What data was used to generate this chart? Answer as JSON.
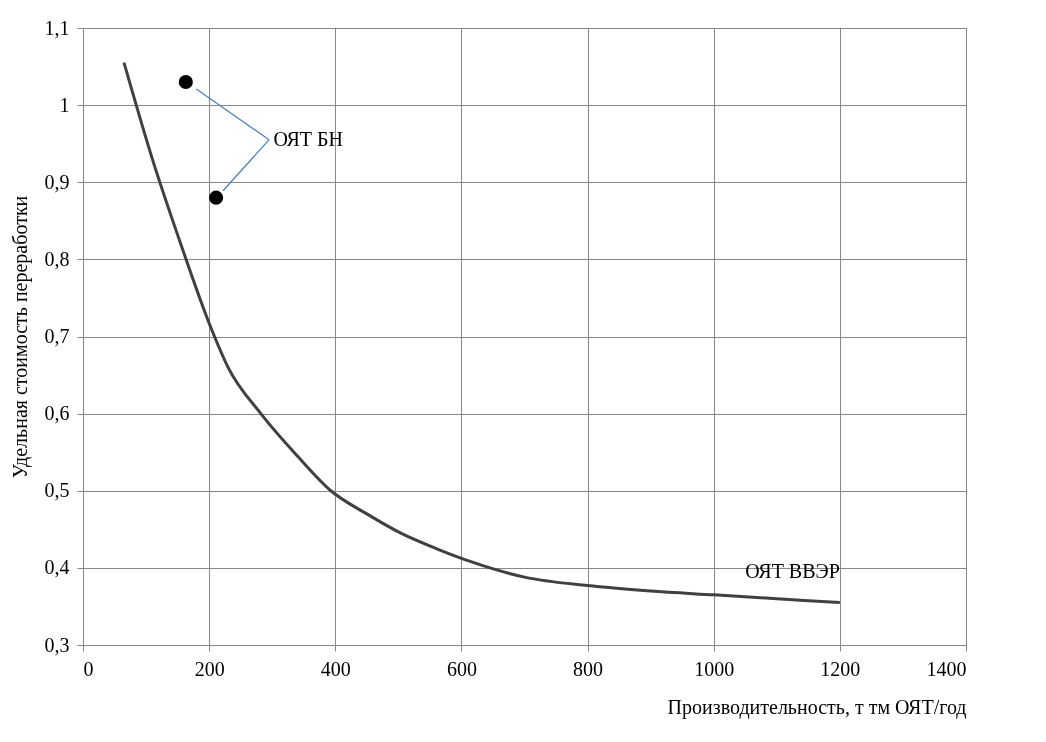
{
  "chart_data": {
    "type": "line",
    "xlabel": "Производительность, т тм ОЯТ/год",
    "ylabel": "Удельная стоимость переработки",
    "xlim": [
      0,
      1400
    ],
    "ylim": [
      0.3,
      1.1
    ],
    "xticks": [
      0,
      200,
      400,
      600,
      800,
      1000,
      1200,
      1400
    ],
    "yticks": [
      {
        "value": 0.3,
        "label": "0,3"
      },
      {
        "value": 0.4,
        "label": "0,4"
      },
      {
        "value": 0.5,
        "label": "0,5"
      },
      {
        "value": 0.6,
        "label": "0,6"
      },
      {
        "value": 0.7,
        "label": "0,7"
      },
      {
        "value": 0.8,
        "label": "0,8"
      },
      {
        "value": 0.9,
        "label": "0,9"
      },
      {
        "value": 1,
        "label": "1"
      },
      {
        "value": 1.1,
        "label": "1,1"
      }
    ],
    "grid": true,
    "series": [
      {
        "name": "ОЯТ ВВЭР",
        "color": "#404040",
        "marker": "none",
        "x": [
          65,
          110,
          155,
          203,
          230,
          282,
          340,
          393,
          450,
          504,
          560,
          615,
          700,
          800,
          900,
          1000,
          1100,
          1200
        ],
        "values": [
          1.055,
          0.93,
          0.82,
          0.711,
          0.66,
          0.6,
          0.545,
          0.5,
          0.47,
          0.445,
          0.425,
          0.408,
          0.388,
          0.377,
          0.37,
          0.365,
          0.36,
          0.355
        ]
      },
      {
        "name": "ОЯТ БН",
        "type": "scatter",
        "color": "#000000",
        "marker": "circle",
        "x": [
          163,
          211
        ],
        "values": [
          1.03,
          0.88
        ]
      }
    ]
  }
}
